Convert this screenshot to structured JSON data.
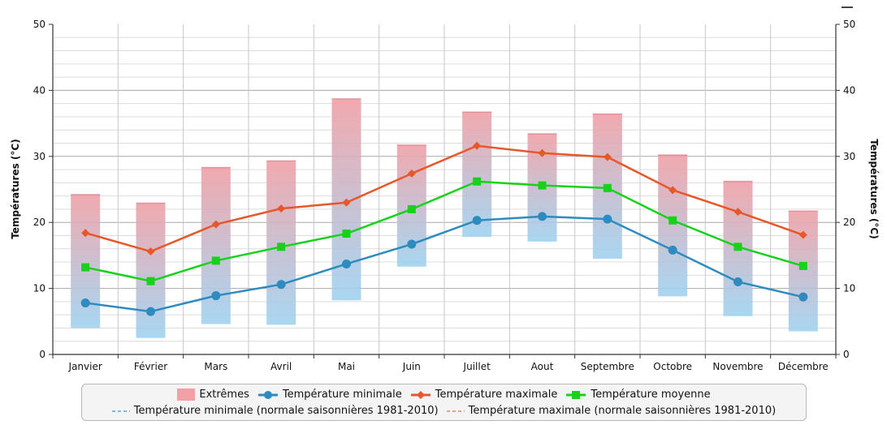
{
  "chart_data": {
    "type": "line",
    "categories": [
      "Janvier",
      "Février",
      "Mars",
      "Avril",
      "Mai",
      "Juin",
      "Juillet",
      "Aout",
      "Septembre",
      "Octobre",
      "Novembre",
      "Décembre"
    ],
    "ylabel_left": "Températures (°C)",
    "ylabel_right": "Températures (°C)",
    "ylim": [
      0,
      50
    ],
    "yticks": [
      0,
      10,
      20,
      30,
      40,
      50
    ],
    "grid": true,
    "legend_position": "bottom",
    "extremes": {
      "name": "Extrêmes",
      "color": "#f1a1a6",
      "low": [
        4.0,
        2.5,
        4.6,
        4.5,
        8.2,
        13.3,
        17.8,
        17.1,
        14.5,
        8.8,
        5.8,
        3.5
      ],
      "high": [
        24.3,
        23.0,
        28.4,
        29.4,
        38.8,
        31.8,
        36.8,
        33.5,
        36.5,
        30.3,
        26.3,
        21.8
      ]
    },
    "series": [
      {
        "name": "Température minimale",
        "color": "#2e8bc0",
        "marker": "circle",
        "values": [
          7.8,
          6.5,
          8.9,
          10.6,
          13.7,
          16.7,
          20.3,
          20.9,
          20.5,
          15.8,
          11.0,
          8.7
        ]
      },
      {
        "name": "Température maximale",
        "color": "#e8572a",
        "marker": "diamond",
        "values": [
          18.4,
          15.6,
          19.7,
          22.1,
          23.0,
          27.4,
          31.6,
          30.5,
          29.9,
          24.9,
          21.6,
          18.1
        ]
      },
      {
        "name": "Température moyenne",
        "color": "#17d11b",
        "marker": "square",
        "values": [
          13.2,
          11.1,
          14.2,
          16.3,
          18.3,
          22.0,
          26.2,
          25.6,
          25.2,
          20.3,
          16.3,
          13.4
        ]
      }
    ],
    "normals_legend": [
      {
        "name": "Température minimale (normale saisonnières 1981-2010)",
        "color": "#7fb9df"
      },
      {
        "name": "Température maximale (normale saisonnières 1981-2010)",
        "color": "#f0a07e"
      }
    ]
  }
}
